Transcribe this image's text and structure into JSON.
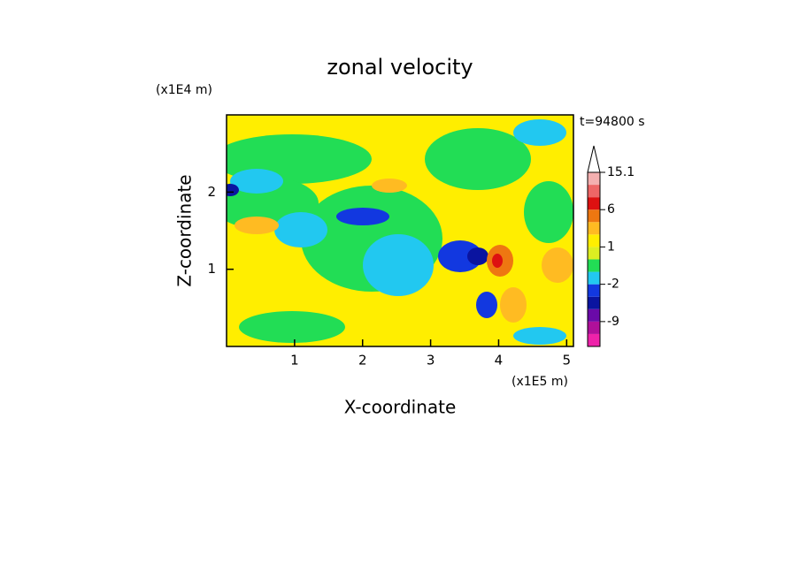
{
  "chart_data": {
    "type": "contour",
    "title": "zonal velocity",
    "xlabel": "X-coordinate",
    "ylabel": "Z-coordinate",
    "x_unit": "(x1E5 m)",
    "y_unit": "(x1E4 m)",
    "time_label": "t=94800 s",
    "xlim": [
      0,
      5.1
    ],
    "xticks": [
      1,
      2,
      3,
      4,
      5
    ],
    "ylim": [
      0,
      3
    ],
    "yticks": [
      1,
      2
    ],
    "colorbar": {
      "levels": [
        -15,
        -12,
        -9,
        -6,
        -4,
        -2,
        -1,
        0,
        1,
        2,
        3,
        6,
        9,
        12,
        15.1
      ],
      "colors": [
        "#ee22aa",
        "#b0109a",
        "#6a0aa8",
        "#0a14a0",
        "#1238e0",
        "#22c8f0",
        "#22dd55",
        "#ddee22",
        "#ffee00",
        "#ffbb22",
        "#ee7711",
        "#dd1111",
        "#ee6666",
        "#f4b0b0"
      ],
      "ticks": [
        -9,
        -2,
        1,
        6,
        15.1
      ]
    }
  }
}
